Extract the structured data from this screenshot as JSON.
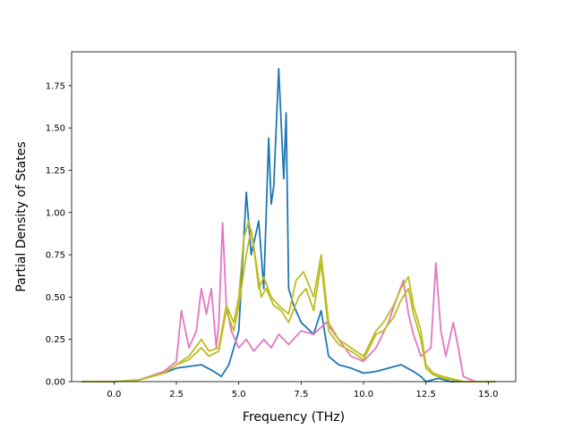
{
  "chart_data": {
    "type": "line",
    "title": "",
    "xlabel": "Frequency (THz)",
    "ylabel": "Partial Density of States",
    "xlim": [
      -1.7,
      16.1
    ],
    "ylim": [
      0,
      1.95
    ],
    "xticks": [
      0.0,
      2.5,
      5.0,
      7.5,
      10.0,
      12.5,
      15.0
    ],
    "xtick_labels": [
      "0.0",
      "2.5",
      "5.0",
      "7.5",
      "10.0",
      "12.5",
      "15.0"
    ],
    "yticks": [
      0.0,
      0.25,
      0.5,
      0.75,
      1.0,
      1.25,
      1.5,
      1.75
    ],
    "ytick_labels": [
      "0.00",
      "0.25",
      "0.50",
      "0.75",
      "1.00",
      "1.25",
      "1.50",
      "1.75"
    ],
    "grid": false,
    "legend": "none",
    "series": [
      {
        "color": "#1f77b4",
        "points": [
          [
            -1.3,
            0.0
          ],
          [
            0.0,
            0.0
          ],
          [
            1.0,
            0.01
          ],
          [
            2.0,
            0.05
          ],
          [
            2.5,
            0.08
          ],
          [
            3.0,
            0.09
          ],
          [
            3.5,
            0.1
          ],
          [
            4.0,
            0.06
          ],
          [
            4.3,
            0.03
          ],
          [
            4.6,
            0.1
          ],
          [
            5.0,
            0.3
          ],
          [
            5.3,
            1.12
          ],
          [
            5.5,
            0.75
          ],
          [
            5.8,
            0.95
          ],
          [
            6.0,
            0.55
          ],
          [
            6.2,
            1.44
          ],
          [
            6.3,
            1.05
          ],
          [
            6.4,
            1.15
          ],
          [
            6.6,
            1.85
          ],
          [
            6.8,
            1.2
          ],
          [
            6.9,
            1.59
          ],
          [
            7.0,
            0.55
          ],
          [
            7.2,
            0.45
          ],
          [
            7.5,
            0.35
          ],
          [
            8.0,
            0.28
          ],
          [
            8.3,
            0.42
          ],
          [
            8.6,
            0.15
          ],
          [
            9.0,
            0.1
          ],
          [
            9.5,
            0.08
          ],
          [
            10.0,
            0.05
          ],
          [
            10.5,
            0.06
          ],
          [
            11.0,
            0.08
          ],
          [
            11.5,
            0.1
          ],
          [
            12.0,
            0.06
          ],
          [
            12.3,
            0.03
          ],
          [
            12.5,
            0.0
          ],
          [
            13.0,
            0.02
          ],
          [
            13.5,
            0.0
          ],
          [
            14.0,
            0.0
          ],
          [
            15.3,
            0.0
          ]
        ]
      },
      {
        "color": "#e377c2",
        "points": [
          [
            -1.3,
            0.0
          ],
          [
            0.0,
            0.0
          ],
          [
            1.0,
            0.01
          ],
          [
            2.0,
            0.06
          ],
          [
            2.5,
            0.12
          ],
          [
            2.7,
            0.42
          ],
          [
            3.0,
            0.2
          ],
          [
            3.3,
            0.3
          ],
          [
            3.5,
            0.55
          ],
          [
            3.7,
            0.4
          ],
          [
            3.9,
            0.55
          ],
          [
            4.1,
            0.2
          ],
          [
            4.2,
            0.35
          ],
          [
            4.35,
            0.94
          ],
          [
            4.5,
            0.45
          ],
          [
            4.7,
            0.3
          ],
          [
            5.0,
            0.2
          ],
          [
            5.3,
            0.25
          ],
          [
            5.6,
            0.18
          ],
          [
            6.0,
            0.25
          ],
          [
            6.3,
            0.2
          ],
          [
            6.6,
            0.28
          ],
          [
            7.0,
            0.22
          ],
          [
            7.5,
            0.3
          ],
          [
            8.0,
            0.28
          ],
          [
            8.5,
            0.35
          ],
          [
            9.0,
            0.25
          ],
          [
            9.5,
            0.15
          ],
          [
            10.0,
            0.12
          ],
          [
            10.5,
            0.2
          ],
          [
            11.0,
            0.35
          ],
          [
            11.3,
            0.48
          ],
          [
            11.6,
            0.6
          ],
          [
            11.8,
            0.4
          ],
          [
            12.0,
            0.28
          ],
          [
            12.3,
            0.15
          ],
          [
            12.7,
            0.2
          ],
          [
            12.9,
            0.7
          ],
          [
            13.1,
            0.3
          ],
          [
            13.3,
            0.15
          ],
          [
            13.6,
            0.35
          ],
          [
            13.8,
            0.2
          ],
          [
            14.0,
            0.03
          ],
          [
            14.5,
            0.0
          ],
          [
            15.3,
            0.0
          ]
        ]
      },
      {
        "color": "#bcbd22",
        "points": [
          [
            -1.3,
            0.0
          ],
          [
            0.0,
            0.0
          ],
          [
            1.0,
            0.01
          ],
          [
            2.0,
            0.05
          ],
          [
            2.5,
            0.1
          ],
          [
            3.0,
            0.15
          ],
          [
            3.5,
            0.25
          ],
          [
            3.8,
            0.18
          ],
          [
            4.2,
            0.2
          ],
          [
            4.5,
            0.45
          ],
          [
            4.8,
            0.35
          ],
          [
            5.0,
            0.5
          ],
          [
            5.2,
            0.85
          ],
          [
            5.4,
            0.95
          ],
          [
            5.6,
            0.8
          ],
          [
            5.8,
            0.55
          ],
          [
            6.0,
            0.62
          ],
          [
            6.3,
            0.5
          ],
          [
            6.6,
            0.45
          ],
          [
            7.0,
            0.4
          ],
          [
            7.3,
            0.6
          ],
          [
            7.6,
            0.65
          ],
          [
            8.0,
            0.5
          ],
          [
            8.3,
            0.75
          ],
          [
            8.6,
            0.35
          ],
          [
            9.0,
            0.25
          ],
          [
            9.5,
            0.2
          ],
          [
            10.0,
            0.15
          ],
          [
            10.5,
            0.3
          ],
          [
            10.8,
            0.35
          ],
          [
            11.2,
            0.45
          ],
          [
            11.5,
            0.55
          ],
          [
            11.8,
            0.62
          ],
          [
            12.0,
            0.45
          ],
          [
            12.3,
            0.3
          ],
          [
            12.5,
            0.1
          ],
          [
            12.8,
            0.05
          ],
          [
            13.2,
            0.03
          ],
          [
            14.0,
            0.0
          ],
          [
            15.3,
            0.0
          ]
        ]
      },
      {
        "color": "#bcbd22",
        "points": [
          [
            -1.3,
            0.0
          ],
          [
            0.0,
            0.0
          ],
          [
            1.0,
            0.01
          ],
          [
            2.0,
            0.05
          ],
          [
            2.5,
            0.1
          ],
          [
            3.0,
            0.13
          ],
          [
            3.5,
            0.2
          ],
          [
            3.8,
            0.15
          ],
          [
            4.2,
            0.18
          ],
          [
            4.5,
            0.42
          ],
          [
            4.8,
            0.3
          ],
          [
            5.0,
            0.45
          ],
          [
            5.3,
            0.75
          ],
          [
            5.5,
            0.9
          ],
          [
            5.7,
            0.7
          ],
          [
            5.9,
            0.5
          ],
          [
            6.1,
            0.55
          ],
          [
            6.4,
            0.45
          ],
          [
            6.7,
            0.42
          ],
          [
            7.0,
            0.35
          ],
          [
            7.4,
            0.5
          ],
          [
            7.7,
            0.55
          ],
          [
            8.0,
            0.42
          ],
          [
            8.3,
            0.7
          ],
          [
            8.6,
            0.3
          ],
          [
            9.0,
            0.22
          ],
          [
            9.5,
            0.18
          ],
          [
            10.0,
            0.13
          ],
          [
            10.5,
            0.28
          ],
          [
            10.8,
            0.3
          ],
          [
            11.2,
            0.38
          ],
          [
            11.5,
            0.48
          ],
          [
            11.8,
            0.55
          ],
          [
            12.0,
            0.4
          ],
          [
            12.3,
            0.25
          ],
          [
            12.5,
            0.08
          ],
          [
            12.8,
            0.04
          ],
          [
            13.2,
            0.02
          ],
          [
            14.0,
            0.0
          ],
          [
            15.3,
            0.0
          ]
        ]
      }
    ]
  }
}
